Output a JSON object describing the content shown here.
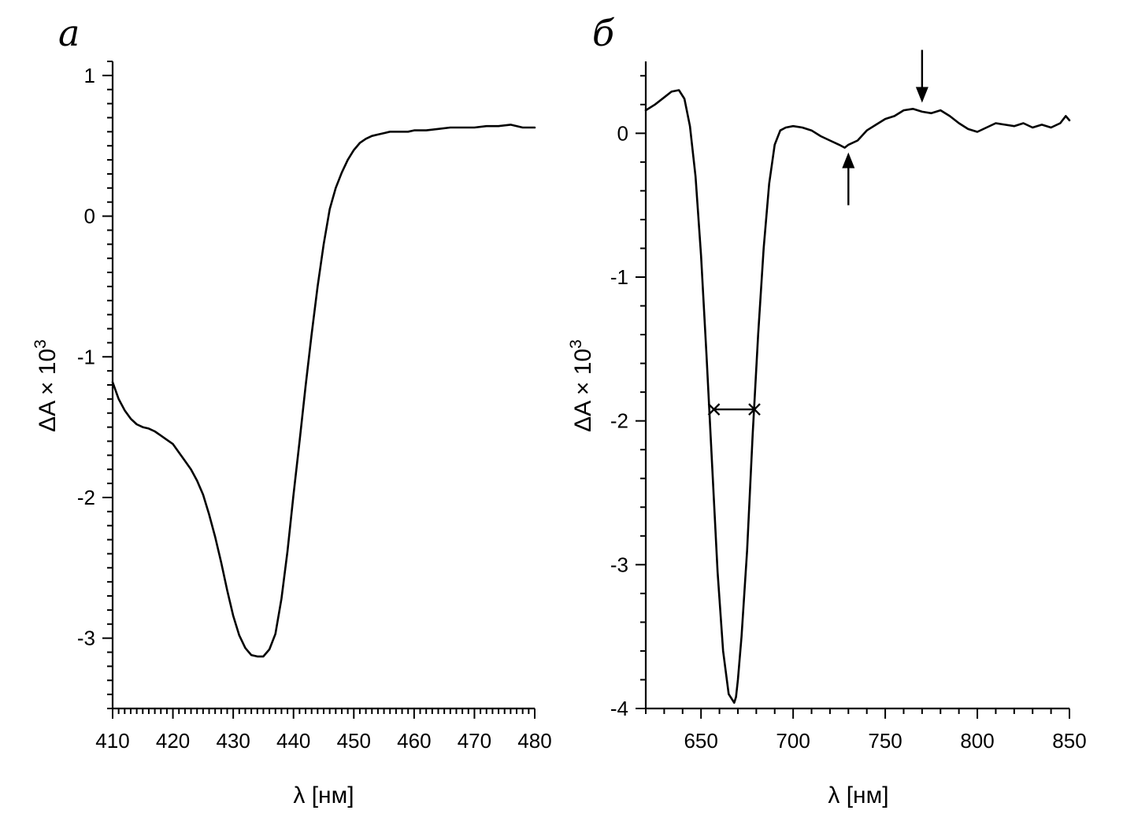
{
  "chart_data": [
    {
      "type": "line",
      "panel_label": "а",
      "xlabel": "λ [нм]",
      "ylabel": "ΔA × 10",
      "ylabel_sup": "3",
      "xlim": [
        410,
        480
      ],
      "ylim": [
        -3.5,
        1.1
      ],
      "xticks": [
        410,
        420,
        430,
        440,
        450,
        460,
        470,
        480
      ],
      "xtick_labels": [
        "410",
        "420",
        "430",
        "440",
        "450",
        "460",
        "470",
        "480"
      ],
      "yticks": [
        1,
        0,
        -1,
        -2,
        -3
      ],
      "ytick_labels": [
        "1",
        "0",
        "-1",
        "-2",
        "-3"
      ],
      "grid": false,
      "series": [
        {
          "x": [
            410,
            411,
            412,
            413,
            414,
            415,
            416,
            417,
            418,
            419,
            420,
            421,
            422,
            423,
            424,
            425,
            426,
            427,
            428,
            429,
            430,
            431,
            432,
            433,
            434,
            435,
            436,
            437,
            438,
            439,
            440,
            441,
            442,
            443,
            444,
            445,
            446,
            447,
            448,
            449,
            450,
            451,
            452,
            453,
            454,
            455,
            456,
            457,
            458,
            459,
            460,
            462,
            464,
            466,
            468,
            470,
            472,
            474,
            476,
            478,
            480
          ],
          "y": [
            -1.18,
            -1.3,
            -1.38,
            -1.44,
            -1.48,
            -1.5,
            -1.51,
            -1.53,
            -1.56,
            -1.59,
            -1.62,
            -1.68,
            -1.74,
            -1.8,
            -1.88,
            -1.98,
            -2.12,
            -2.28,
            -2.46,
            -2.66,
            -2.84,
            -2.98,
            -3.07,
            -3.12,
            -3.13,
            -3.13,
            -3.08,
            -2.97,
            -2.72,
            -2.38,
            -1.98,
            -1.6,
            -1.21,
            -0.84,
            -0.5,
            -0.2,
            0.05,
            0.2,
            0.31,
            0.4,
            0.47,
            0.52,
            0.55,
            0.57,
            0.58,
            0.59,
            0.6,
            0.6,
            0.6,
            0.6,
            0.61,
            0.61,
            0.62,
            0.63,
            0.63,
            0.63,
            0.64,
            0.64,
            0.65,
            0.63,
            0.63
          ]
        }
      ]
    },
    {
      "type": "line",
      "panel_label": "б",
      "xlabel": "λ [нм]",
      "ylabel": "ΔA × 10",
      "ylabel_sup": "3",
      "xlim": [
        620,
        850
      ],
      "ylim": [
        -4,
        0.5
      ],
      "xticks": [
        650,
        700,
        750,
        800,
        850
      ],
      "xtick_labels": [
        "650",
        "700",
        "750",
        "800",
        "850"
      ],
      "yticks": [
        0,
        -1,
        -2,
        -3,
        -4
      ],
      "ytick_labels": [
        "0",
        "-1",
        "-2",
        "-3",
        "-4"
      ],
      "grid": false,
      "series": [
        {
          "x": [
            620,
            625,
            630,
            634,
            638,
            641,
            644,
            647,
            650,
            653,
            656,
            659,
            662,
            665,
            668,
            669,
            670,
            672,
            675,
            678,
            681,
            684,
            687,
            690,
            693,
            696,
            700,
            705,
            710,
            715,
            720,
            725,
            728,
            730,
            735,
            740,
            745,
            750,
            755,
            760,
            765,
            770,
            775,
            780,
            785,
            790,
            795,
            800,
            805,
            810,
            815,
            820,
            825,
            830,
            835,
            840,
            845,
            848,
            850
          ],
          "y": [
            0.16,
            0.2,
            0.25,
            0.29,
            0.3,
            0.24,
            0.05,
            -0.3,
            -0.85,
            -1.55,
            -2.3,
            -3.05,
            -3.6,
            -3.9,
            -3.96,
            -3.92,
            -3.8,
            -3.5,
            -2.9,
            -2.1,
            -1.4,
            -0.8,
            -0.35,
            -0.08,
            0.02,
            0.04,
            0.05,
            0.04,
            0.02,
            -0.02,
            -0.05,
            -0.08,
            -0.1,
            -0.08,
            -0.05,
            0.02,
            0.06,
            0.1,
            0.12,
            0.16,
            0.17,
            0.15,
            0.14,
            0.16,
            0.12,
            0.07,
            0.03,
            0.01,
            0.04,
            0.07,
            0.06,
            0.05,
            0.07,
            0.04,
            0.06,
            0.04,
            0.07,
            0.12,
            0.09
          ]
        }
      ],
      "annotations": [
        {
          "kind": "fwhm_bar",
          "x1": 657,
          "x2": 679,
          "y": -1.92
        },
        {
          "kind": "arrow_up",
          "x": 730,
          "y_tip": -0.1,
          "y_tail": -0.5
        },
        {
          "kind": "arrow_down",
          "x": 770,
          "y_tip": 0.18,
          "y_tail": 0.58
        }
      ]
    }
  ]
}
